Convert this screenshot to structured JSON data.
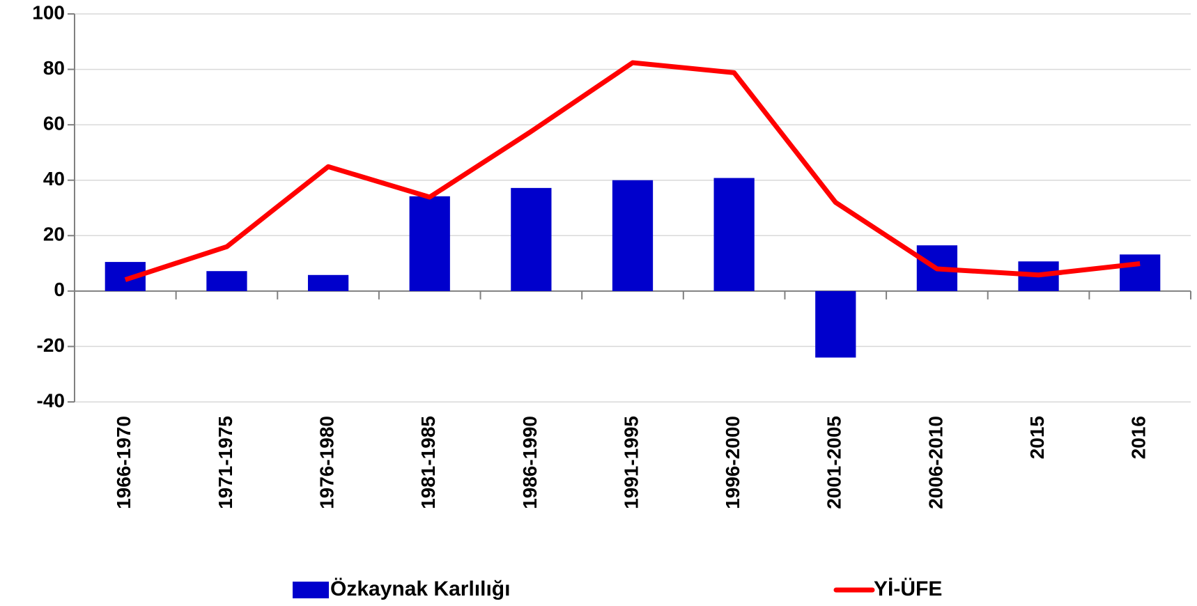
{
  "chart_data": {
    "type": "bar",
    "categories": [
      "1966-1970",
      "1971-1975",
      "1976-1980",
      "1981-1985",
      "1986-1990",
      "1991-1995",
      "1996-2000",
      "2001-2005",
      "2006-2010",
      "2015",
      "2016"
    ],
    "series": [
      {
        "name": "Özkaynak Karlılığı",
        "type": "bar",
        "color": "#0000cc",
        "values": [
          10.5,
          7.2,
          5.8,
          34.2,
          37.2,
          40,
          40.8,
          -24,
          16.5,
          10.7,
          13.2
        ]
      },
      {
        "name": "Yİ-ÜFE",
        "type": "line",
        "color": "#ff0000",
        "values": [
          4.1,
          16,
          44.9,
          33.9,
          57.6,
          82.4,
          78.8,
          32,
          8,
          5.8,
          9.9
        ]
      }
    ],
    "ylim": [
      -40,
      100
    ],
    "yticks": [
      -40,
      -20,
      0,
      20,
      40,
      60,
      80,
      100
    ],
    "grid": true,
    "legend": "bottom"
  }
}
